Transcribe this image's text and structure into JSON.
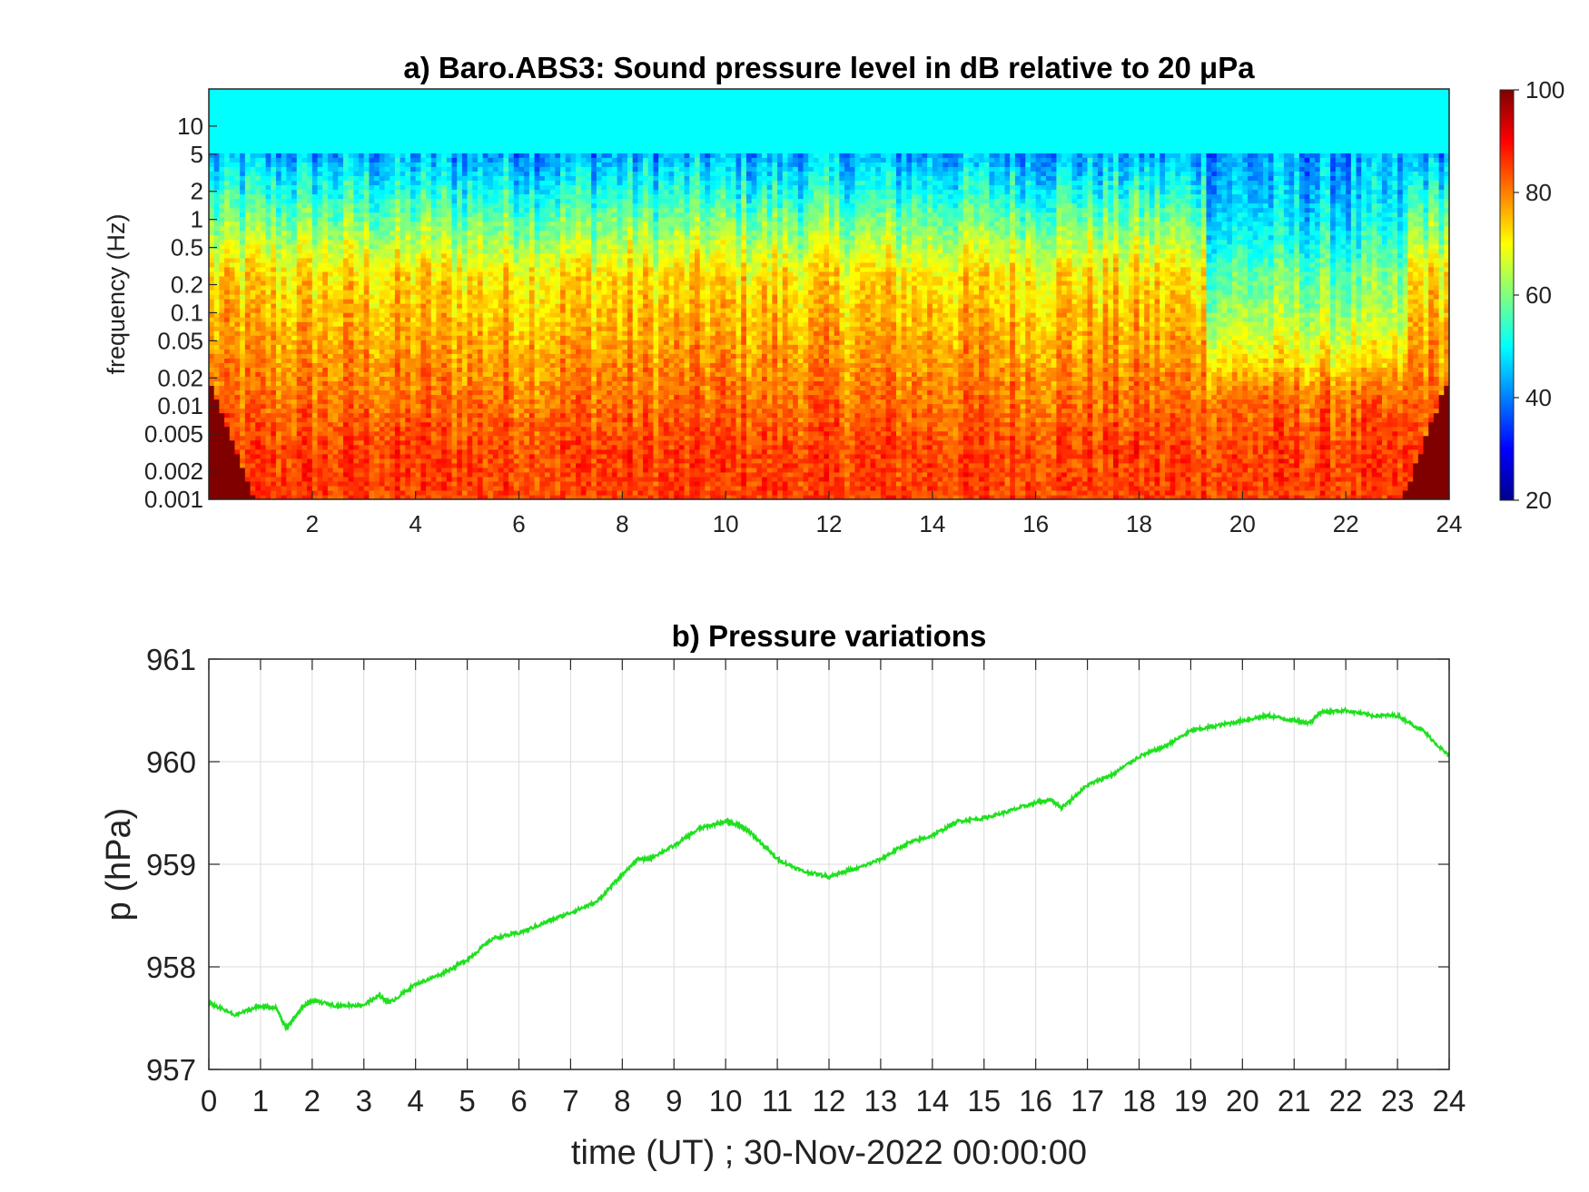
{
  "chart_data": [
    {
      "type": "heatmap",
      "title": "a) Baro.ABS3: Sound pressure level in dB relative to 20 μPa",
      "ylabel": "frequency (Hz)",
      "xlabel": "",
      "y_scale": "log",
      "xlim": [
        0,
        24
      ],
      "ylim": [
        0.001,
        25
      ],
      "x_ticks": [
        2,
        4,
        6,
        8,
        10,
        12,
        14,
        16,
        18,
        20,
        22,
        24
      ],
      "x_tick_labels": [
        "2",
        "4",
        "6",
        "8",
        "10",
        "12",
        "14",
        "16",
        "18",
        "20",
        "22",
        "24"
      ],
      "y_ticks": [
        0.001,
        0.002,
        0.005,
        0.01,
        0.02,
        0.05,
        0.1,
        0.2,
        0.5,
        1,
        2,
        5,
        10
      ],
      "y_tick_labels": [
        "0.001",
        "0.002",
        "0.005",
        "0.01",
        "0.02",
        "0.05",
        "0.1",
        "0.2",
        "0.5",
        "1",
        "2",
        "5",
        "10"
      ],
      "colorbar": {
        "colormap": "jet",
        "range": [
          20,
          100
        ],
        "ticks": [
          20,
          40,
          60,
          80,
          100
        ],
        "tick_labels": [
          "20",
          "40",
          "60",
          "80",
          "100"
        ]
      },
      "description_levels": {
        "low_frequency_band_dB": 85,
        "mid_frequency_band_dB": 72,
        "high_frequency_band_dB": 50
      },
      "quiet_periods_hours": [
        [
          19.3,
          23.2
        ]
      ]
    },
    {
      "type": "line",
      "title": "b) Pressure variations",
      "xlabel": "time (UT) ; 30-Nov-2022 00:00:00",
      "ylabel": "p (hPa)",
      "xlim": [
        0,
        24
      ],
      "ylim": [
        957,
        961
      ],
      "grid": true,
      "x_ticks": [
        0,
        1,
        2,
        3,
        4,
        5,
        6,
        7,
        8,
        9,
        10,
        11,
        12,
        13,
        14,
        15,
        16,
        17,
        18,
        19,
        20,
        21,
        22,
        23,
        24
      ],
      "x_tick_labels": [
        "0",
        "1",
        "2",
        "3",
        "4",
        "5",
        "6",
        "7",
        "8",
        "9",
        "10",
        "11",
        "12",
        "13",
        "14",
        "15",
        "16",
        "17",
        "18",
        "19",
        "20",
        "21",
        "22",
        "23",
        "24"
      ],
      "y_ticks": [
        957,
        958,
        959,
        960,
        961
      ],
      "y_tick_labels": [
        "957",
        "958",
        "959",
        "960",
        "961"
      ],
      "series": [
        {
          "color": "#1fe01f",
          "x": [
            0,
            0.5,
            1,
            1.3,
            1.5,
            1.8,
            2,
            2.5,
            3,
            3.3,
            3.5,
            4,
            4.5,
            5,
            5.5,
            6,
            6.5,
            7,
            7.5,
            8,
            8.3,
            8.5,
            9,
            9.5,
            10,
            10.3,
            10.5,
            11,
            11.5,
            12,
            12.3,
            12.5,
            13,
            13.5,
            14,
            14.5,
            15,
            15.5,
            16,
            16.3,
            16.5,
            17,
            17.5,
            18,
            18.5,
            19,
            19.5,
            20,
            20.5,
            21,
            21.3,
            21.5,
            22,
            22.5,
            23,
            23.5,
            24
          ],
          "y": [
            957.65,
            957.53,
            957.62,
            957.6,
            957.4,
            957.6,
            957.67,
            957.62,
            957.63,
            957.72,
            957.65,
            957.83,
            957.93,
            958.07,
            958.28,
            958.33,
            958.43,
            958.53,
            958.63,
            958.9,
            959.05,
            959.05,
            959.18,
            959.35,
            959.42,
            959.37,
            959.3,
            959.05,
            958.93,
            958.88,
            958.93,
            958.95,
            959.05,
            959.2,
            959.28,
            959.42,
            959.45,
            959.52,
            959.6,
            959.63,
            959.55,
            959.77,
            959.88,
            960.05,
            960.15,
            960.3,
            960.35,
            960.4,
            960.45,
            960.4,
            960.38,
            960.48,
            960.5,
            960.45,
            960.45,
            960.3,
            960.05
          ]
        }
      ]
    }
  ]
}
